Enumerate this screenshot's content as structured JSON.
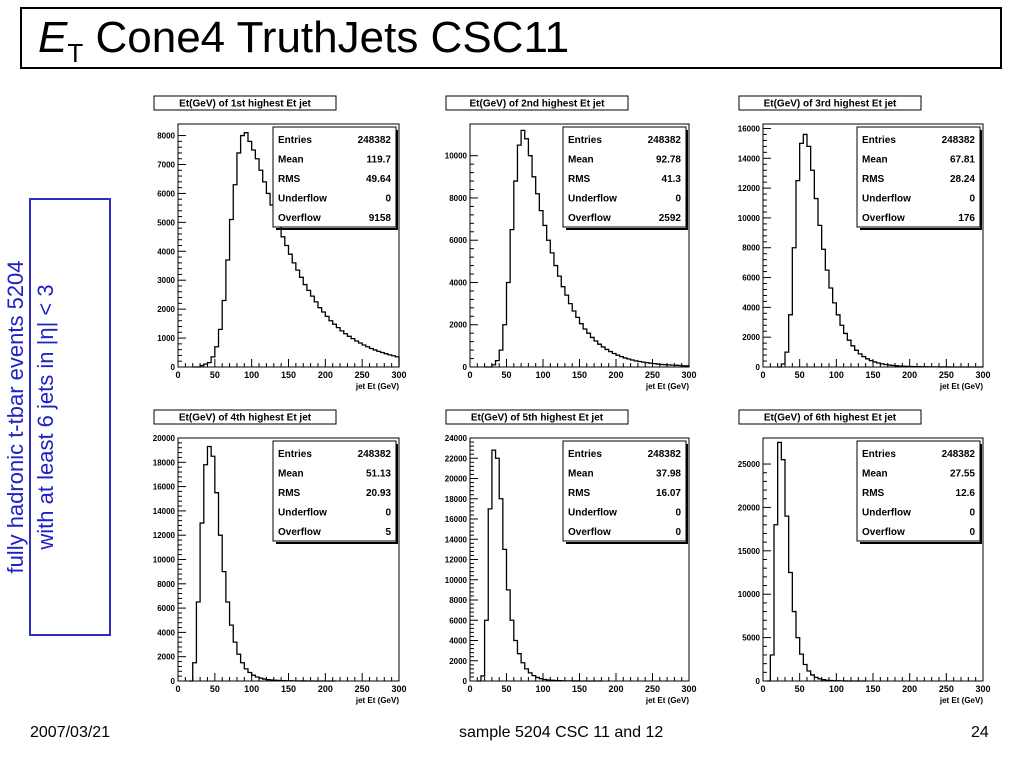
{
  "slide": {
    "title_main": "E",
    "title_sub": "T",
    "title_rest": " Cone4 TruthJets CSC11",
    "side_line1": "fully hadronic t-tbar events 5204",
    "side_line2": "with at least 6 jets in |η| < 3",
    "footer_date": "2007/03/21",
    "footer_sample": "sample 5204 CSC 11 and 12",
    "footer_page": "24"
  },
  "chart_data": [
    {
      "type": "histogram",
      "title": "Et(GeV) of 1st highest Et jet",
      "xlabel": "jet Et (GeV)",
      "xlim": [
        0,
        300
      ],
      "ylim": [
        0,
        8400
      ],
      "xticks": [
        0,
        50,
        100,
        150,
        200,
        250,
        300
      ],
      "yticks": [
        0,
        1000,
        2000,
        3000,
        4000,
        5000,
        6000,
        7000,
        8000
      ],
      "stats": [
        [
          "Entries",
          "248382"
        ],
        [
          "Mean",
          "119.7"
        ],
        [
          "RMS",
          "49.64"
        ],
        [
          "Underflow",
          "0"
        ],
        [
          "Overflow",
          "9158"
        ]
      ],
      "bins": [
        [
          20,
          0
        ],
        [
          25,
          0
        ],
        [
          30,
          50
        ],
        [
          35,
          100
        ],
        [
          40,
          150
        ],
        [
          45,
          350
        ],
        [
          50,
          700
        ],
        [
          55,
          1300
        ],
        [
          60,
          2300
        ],
        [
          65,
          3700
        ],
        [
          70,
          5100
        ],
        [
          75,
          6300
        ],
        [
          80,
          7400
        ],
        [
          85,
          8000
        ],
        [
          90,
          8100
        ],
        [
          95,
          7800
        ],
        [
          100,
          7500
        ],
        [
          105,
          7200
        ],
        [
          110,
          6800
        ],
        [
          115,
          6400
        ],
        [
          120,
          6000
        ],
        [
          125,
          5600
        ],
        [
          130,
          5200
        ],
        [
          135,
          4850
        ],
        [
          140,
          4500
        ],
        [
          145,
          4200
        ],
        [
          150,
          3900
        ],
        [
          155,
          3600
        ],
        [
          160,
          3350
        ],
        [
          165,
          3100
        ],
        [
          170,
          2850
        ],
        [
          175,
          2650
        ],
        [
          180,
          2450
        ],
        [
          185,
          2250
        ],
        [
          190,
          2050
        ],
        [
          195,
          1900
        ],
        [
          200,
          1750
        ],
        [
          205,
          1600
        ],
        [
          210,
          1480
        ],
        [
          215,
          1360
        ],
        [
          220,
          1250
        ],
        [
          225,
          1150
        ],
        [
          230,
          1060
        ],
        [
          235,
          980
        ],
        [
          240,
          900
        ],
        [
          245,
          830
        ],
        [
          250,
          760
        ],
        [
          255,
          700
        ],
        [
          260,
          640
        ],
        [
          265,
          590
        ],
        [
          270,
          540
        ],
        [
          275,
          500
        ],
        [
          280,
          460
        ],
        [
          285,
          420
        ],
        [
          290,
          390
        ],
        [
          295,
          350
        ]
      ]
    },
    {
      "type": "histogram",
      "title": "Et(GeV) of 2nd highest Et jet",
      "xlabel": "jet Et (GeV)",
      "xlim": [
        0,
        300
      ],
      "ylim": [
        0,
        11500
      ],
      "xticks": [
        0,
        50,
        100,
        150,
        200,
        250,
        300
      ],
      "yticks": [
        0,
        2000,
        4000,
        6000,
        8000,
        10000
      ],
      "stats": [
        [
          "Entries",
          "248382"
        ],
        [
          "Mean",
          "92.78"
        ],
        [
          "RMS",
          "41.3"
        ],
        [
          "Underflow",
          "0"
        ],
        [
          "Overflow",
          "2592"
        ]
      ],
      "bins": [
        [
          20,
          0
        ],
        [
          25,
          0
        ],
        [
          30,
          100
        ],
        [
          35,
          300
        ],
        [
          40,
          800
        ],
        [
          45,
          2000
        ],
        [
          50,
          4000
        ],
        [
          55,
          6500
        ],
        [
          60,
          8800
        ],
        [
          65,
          10500
        ],
        [
          70,
          11200
        ],
        [
          75,
          10800
        ],
        [
          80,
          10000
        ],
        [
          85,
          9000
        ],
        [
          90,
          8200
        ],
        [
          95,
          7400
        ],
        [
          100,
          6700
        ],
        [
          105,
          6000
        ],
        [
          110,
          5400
        ],
        [
          115,
          4800
        ],
        [
          120,
          4300
        ],
        [
          125,
          3800
        ],
        [
          130,
          3400
        ],
        [
          135,
          3000
        ],
        [
          140,
          2650
        ],
        [
          145,
          2350
        ],
        [
          150,
          2050
        ],
        [
          155,
          1800
        ],
        [
          160,
          1600
        ],
        [
          165,
          1400
        ],
        [
          170,
          1230
        ],
        [
          175,
          1080
        ],
        [
          180,
          950
        ],
        [
          185,
          830
        ],
        [
          190,
          730
        ],
        [
          195,
          640
        ],
        [
          200,
          560
        ],
        [
          205,
          490
        ],
        [
          210,
          430
        ],
        [
          215,
          380
        ],
        [
          220,
          330
        ],
        [
          225,
          290
        ],
        [
          230,
          260
        ],
        [
          235,
          230
        ],
        [
          240,
          200
        ],
        [
          245,
          180
        ],
        [
          250,
          160
        ],
        [
          255,
          140
        ],
        [
          260,
          120
        ],
        [
          265,
          110
        ],
        [
          270,
          100
        ],
        [
          275,
          90
        ],
        [
          280,
          80
        ],
        [
          285,
          70
        ],
        [
          290,
          60
        ],
        [
          295,
          50
        ]
      ]
    },
    {
      "type": "histogram",
      "title": "Et(GeV) of 3rd highest Et jet",
      "xlabel": "jet Et (GeV)",
      "xlim": [
        0,
        300
      ],
      "ylim": [
        0,
        16300
      ],
      "xticks": [
        0,
        50,
        100,
        150,
        200,
        250,
        300
      ],
      "yticks": [
        0,
        2000,
        4000,
        6000,
        8000,
        10000,
        12000,
        14000,
        16000
      ],
      "stats": [
        [
          "Entries",
          "248382"
        ],
        [
          "Mean",
          "67.81"
        ],
        [
          "RMS",
          "28.24"
        ],
        [
          "Underflow",
          "0"
        ],
        [
          "Overflow",
          "176"
        ]
      ],
      "bins": [
        [
          20,
          0
        ],
        [
          25,
          200
        ],
        [
          30,
          1000
        ],
        [
          35,
          3500
        ],
        [
          40,
          8000
        ],
        [
          45,
          12500
        ],
        [
          50,
          15000
        ],
        [
          55,
          15600
        ],
        [
          60,
          14800
        ],
        [
          65,
          13200
        ],
        [
          70,
          11300
        ],
        [
          75,
          9500
        ],
        [
          80,
          7900
        ],
        [
          85,
          6500
        ],
        [
          90,
          5300
        ],
        [
          95,
          4300
        ],
        [
          100,
          3500
        ],
        [
          105,
          2800
        ],
        [
          110,
          2250
        ],
        [
          115,
          1800
        ],
        [
          120,
          1420
        ],
        [
          125,
          1120
        ],
        [
          130,
          880
        ],
        [
          135,
          700
        ],
        [
          140,
          550
        ],
        [
          145,
          430
        ],
        [
          150,
          340
        ],
        [
          155,
          270
        ],
        [
          160,
          210
        ],
        [
          165,
          170
        ],
        [
          170,
          130
        ],
        [
          175,
          100
        ],
        [
          180,
          80
        ],
        [
          185,
          60
        ],
        [
          190,
          50
        ],
        [
          195,
          40
        ],
        [
          200,
          30
        ],
        [
          205,
          25
        ],
        [
          210,
          20
        ],
        [
          215,
          15
        ],
        [
          220,
          12
        ],
        [
          225,
          10
        ],
        [
          230,
          8
        ],
        [
          235,
          6
        ],
        [
          240,
          5
        ],
        [
          245,
          4
        ],
        [
          250,
          3
        ],
        [
          255,
          2
        ],
        [
          260,
          2
        ],
        [
          265,
          1
        ],
        [
          270,
          1
        ],
        [
          275,
          1
        ],
        [
          280,
          0
        ],
        [
          285,
          0
        ],
        [
          290,
          0
        ],
        [
          295,
          0
        ]
      ]
    },
    {
      "type": "histogram",
      "title": "Et(GeV) of 4th highest Et jet",
      "xlabel": "jet Et (GeV)",
      "xlim": [
        0,
        300
      ],
      "ylim": [
        0,
        20000
      ],
      "xticks": [
        0,
        50,
        100,
        150,
        200,
        250,
        300
      ],
      "yticks": [
        0,
        2000,
        4000,
        6000,
        8000,
        10000,
        12000,
        14000,
        16000,
        18000,
        20000
      ],
      "stats": [
        [
          "Entries",
          "248382"
        ],
        [
          "Mean",
          "51.13"
        ],
        [
          "RMS",
          "20.93"
        ],
        [
          "Underflow",
          "0"
        ],
        [
          "Overflow",
          "5"
        ]
      ],
      "bins": [
        [
          15,
          0
        ],
        [
          20,
          1500
        ],
        [
          25,
          6500
        ],
        [
          30,
          13000
        ],
        [
          35,
          17800
        ],
        [
          40,
          19300
        ],
        [
          45,
          18500
        ],
        [
          50,
          15500
        ],
        [
          55,
          12000
        ],
        [
          60,
          9000
        ],
        [
          65,
          6500
        ],
        [
          70,
          4600
        ],
        [
          75,
          3200
        ],
        [
          80,
          2200
        ],
        [
          85,
          1500
        ],
        [
          90,
          1000
        ],
        [
          95,
          700
        ],
        [
          100,
          480
        ],
        [
          105,
          330
        ],
        [
          110,
          230
        ],
        [
          115,
          160
        ],
        [
          120,
          110
        ],
        [
          125,
          80
        ],
        [
          130,
          60
        ],
        [
          135,
          40
        ],
        [
          140,
          30
        ],
        [
          145,
          20
        ],
        [
          150,
          15
        ],
        [
          155,
          10
        ],
        [
          160,
          8
        ],
        [
          165,
          6
        ],
        [
          170,
          4
        ],
        [
          175,
          3
        ],
        [
          180,
          2
        ],
        [
          185,
          2
        ],
        [
          190,
          1
        ],
        [
          195,
          1
        ],
        [
          200,
          1
        ],
        [
          205,
          0
        ],
        [
          210,
          0
        ]
      ]
    },
    {
      "type": "histogram",
      "title": "Et(GeV) of 5th highest Et jet",
      "xlabel": "jet Et (GeV)",
      "xlim": [
        0,
        300
      ],
      "ylim": [
        0,
        24000
      ],
      "xticks": [
        0,
        50,
        100,
        150,
        200,
        250,
        300
      ],
      "yticks": [
        0,
        2000,
        4000,
        6000,
        8000,
        10000,
        12000,
        14000,
        16000,
        18000,
        20000,
        22000,
        24000
      ],
      "stats": [
        [
          "Entries",
          "248382"
        ],
        [
          "Mean",
          "37.98"
        ],
        [
          "RMS",
          "16.07"
        ],
        [
          "Underflow",
          "0"
        ],
        [
          "Overflow",
          "0"
        ]
      ],
      "bins": [
        [
          10,
          0
        ],
        [
          15,
          500
        ],
        [
          20,
          6000
        ],
        [
          25,
          17000
        ],
        [
          30,
          22800
        ],
        [
          35,
          22000
        ],
        [
          40,
          18000
        ],
        [
          45,
          13000
        ],
        [
          50,
          9000
        ],
        [
          55,
          6000
        ],
        [
          60,
          4000
        ],
        [
          65,
          2700
        ],
        [
          70,
          1800
        ],
        [
          75,
          1200
        ],
        [
          80,
          800
        ],
        [
          85,
          530
        ],
        [
          90,
          350
        ],
        [
          95,
          230
        ],
        [
          100,
          150
        ],
        [
          105,
          100
        ],
        [
          110,
          70
        ],
        [
          115,
          45
        ],
        [
          120,
          30
        ],
        [
          125,
          20
        ],
        [
          130,
          15
        ],
        [
          135,
          10
        ],
        [
          140,
          7
        ],
        [
          145,
          5
        ],
        [
          150,
          3
        ],
        [
          155,
          2
        ],
        [
          160,
          1
        ],
        [
          165,
          1
        ],
        [
          170,
          0
        ],
        [
          175,
          0
        ]
      ]
    },
    {
      "type": "histogram",
      "title": "Et(GeV) of 6th highest Et jet",
      "xlabel": "jet Et (GeV)",
      "xlim": [
        0,
        300
      ],
      "ylim": [
        0,
        28000
      ],
      "xticks": [
        0,
        50,
        100,
        150,
        200,
        250,
        300
      ],
      "yticks": [
        0,
        5000,
        10000,
        15000,
        20000,
        25000
      ],
      "stats": [
        [
          "Entries",
          "248382"
        ],
        [
          "Mean",
          "27.55"
        ],
        [
          "RMS",
          "12.6"
        ],
        [
          "Underflow",
          "0"
        ],
        [
          "Overflow",
          "0"
        ]
      ],
      "bins": [
        [
          5,
          0
        ],
        [
          10,
          3000
        ],
        [
          15,
          18000
        ],
        [
          20,
          27500
        ],
        [
          25,
          25500
        ],
        [
          30,
          19000
        ],
        [
          35,
          12500
        ],
        [
          40,
          8000
        ],
        [
          45,
          5000
        ],
        [
          50,
          3100
        ],
        [
          55,
          1900
        ],
        [
          60,
          1150
        ],
        [
          65,
          700
        ],
        [
          70,
          420
        ],
        [
          75,
          250
        ],
        [
          80,
          150
        ],
        [
          85,
          90
        ],
        [
          90,
          55
        ],
        [
          95,
          33
        ],
        [
          100,
          20
        ],
        [
          105,
          12
        ],
        [
          110,
          7
        ],
        [
          115,
          4
        ],
        [
          120,
          2
        ],
        [
          125,
          1
        ],
        [
          130,
          0
        ],
        [
          135,
          0
        ]
      ]
    }
  ]
}
